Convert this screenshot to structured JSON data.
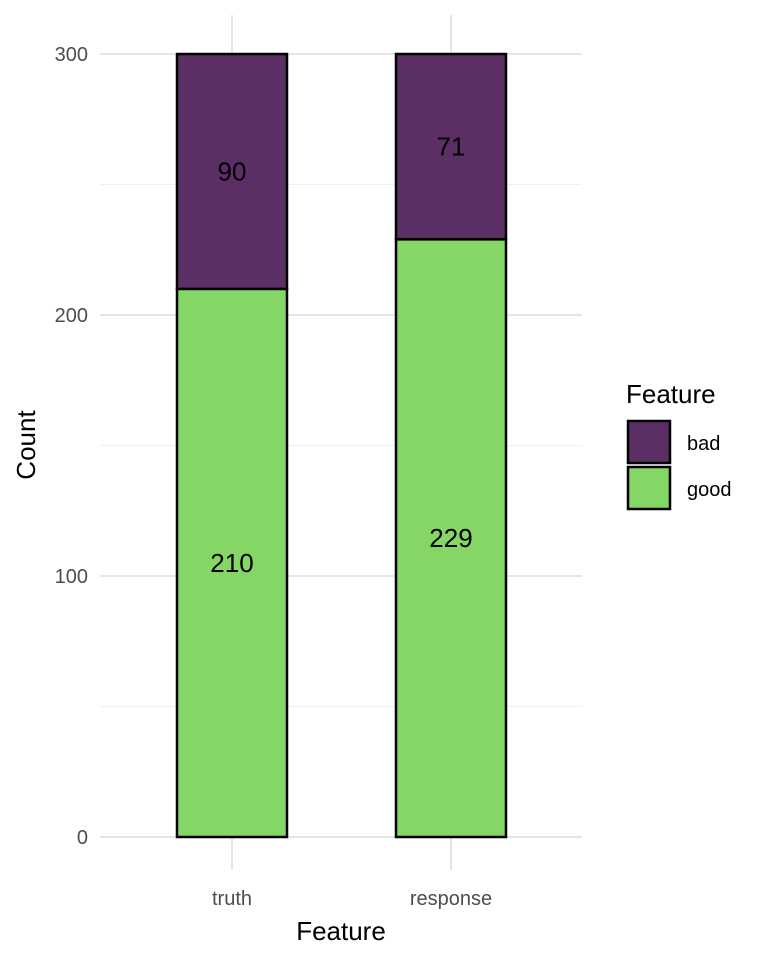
{
  "chart_data": {
    "type": "bar",
    "stacked": true,
    "categories": [
      "truth",
      "response"
    ],
    "series": [
      {
        "name": "good",
        "values": [
          210,
          229
        ],
        "color": "#86D666"
      },
      {
        "name": "bad",
        "values": [
          90,
          71
        ],
        "color": "#5B2E66"
      }
    ],
    "xlabel": "Feature",
    "ylabel": "Count",
    "ylim": [
      0,
      300
    ],
    "yticks": [
      0,
      100,
      200,
      300
    ],
    "grid": true,
    "legend": {
      "title": "Feature",
      "placement": "right",
      "entries": [
        "bad",
        "good"
      ]
    }
  }
}
